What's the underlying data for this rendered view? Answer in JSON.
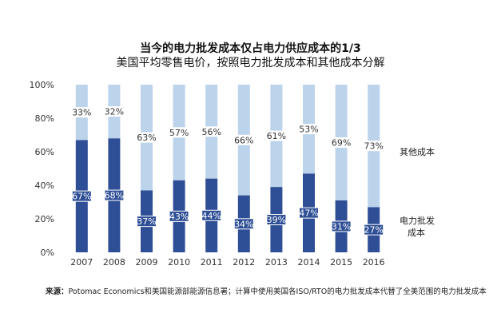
{
  "chart_data": {
    "type": "bar",
    "stacked": true,
    "title": "当今的电力批发成本仅占电力供应成本的1/3",
    "subtitle": "美国平均零售电价，按照电力批发成本和其他成本分解",
    "categories": [
      "2007",
      "2008",
      "2009",
      "2010",
      "2011",
      "2012",
      "2013",
      "2014",
      "2015",
      "2016"
    ],
    "series": [
      {
        "name": "电力批发成本",
        "color": "#2e4f96",
        "values": [
          67,
          68,
          37,
          43,
          44,
          34,
          39,
          47,
          31,
          27
        ],
        "labels": [
          "67%",
          "68%",
          "37%",
          "43%",
          "44%",
          "34%",
          "39%",
          "47%",
          "31%",
          "27%"
        ]
      },
      {
        "name": "其他成本",
        "color": "#bcd3ec",
        "values": [
          33,
          32,
          63,
          57,
          56,
          66,
          61,
          53,
          69,
          73
        ],
        "labels": [
          "33%",
          "32%",
          "63%",
          "57%",
          "56%",
          "66%",
          "61%",
          "53%",
          "69%",
          "73%"
        ]
      }
    ],
    "ylim": [
      0,
      100
    ],
    "yticks": [
      0,
      20,
      40,
      60,
      80,
      100
    ],
    "ytick_labels": [
      "0%",
      "20%",
      "40%",
      "60%",
      "80%",
      "100%"
    ],
    "legend": {
      "upper": "其他成本",
      "lower_line1": "电力批发",
      "lower_line2": "成本"
    }
  },
  "source": {
    "label": "来源：",
    "text": "Potomac Economics和美国能源部能源信息署；计算中使用美国各ISO/RTO的电力批发成本代替了全美范围的电力批发成本"
  }
}
